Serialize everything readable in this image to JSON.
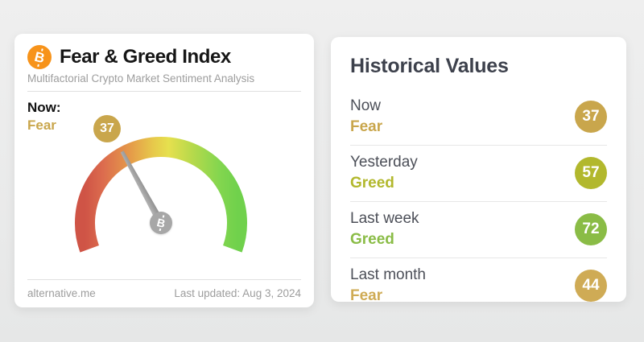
{
  "gauge_card": {
    "title": "Fear & Greed Index",
    "subtitle": "Multifactorial Crypto Market Sentiment Analysis",
    "now_label": "Now:",
    "now_classification": "Fear",
    "value": "37",
    "gauge_min": 0,
    "gauge_max": 100,
    "source": "alternative.me",
    "last_updated": "Last updated: Aug 3, 2024"
  },
  "history_card": {
    "title": "Historical Values",
    "rows": [
      {
        "period": "Now",
        "classification": "Fear",
        "value": "37",
        "color": "#c9a64c"
      },
      {
        "period": "Yesterday",
        "classification": "Greed",
        "value": "57",
        "color": "#b2b82d"
      },
      {
        "period": "Last week",
        "classification": "Greed",
        "value": "72",
        "color": "#8abc46"
      },
      {
        "period": "Last month",
        "classification": "Fear",
        "value": "44",
        "color": "#cfab55"
      }
    ]
  },
  "colors": {
    "bitcoin_orange": "#f7931a",
    "gold_text": "#c9a64c",
    "needle_gray": "#a2a2a2",
    "gauge_gradient": [
      "#cf5446",
      "#dc6c4e",
      "#e59b49",
      "#e7c94b",
      "#e6e04e",
      "#b8d94b",
      "#84d64f",
      "#70d14c"
    ]
  }
}
